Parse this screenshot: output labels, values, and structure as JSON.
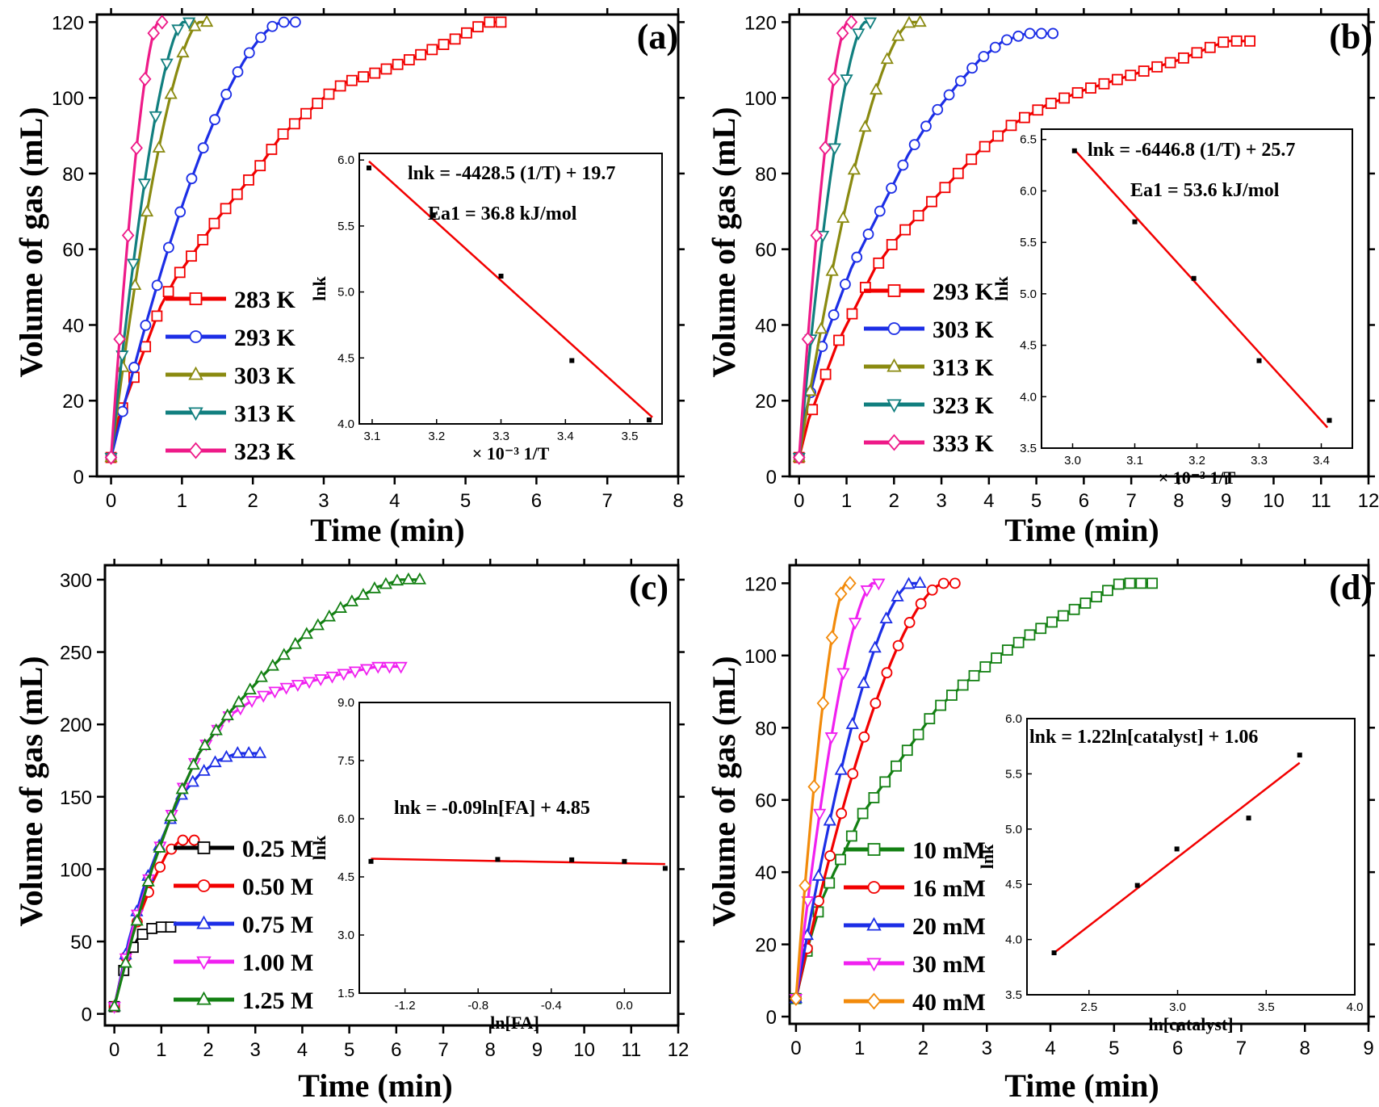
{
  "colors": {
    "red": "#f20000",
    "blue": "#1c2ee6",
    "olive": "#8a8a10",
    "teal": "#117f7f",
    "magenta": "#ee1a88",
    "black": "#000000",
    "green": "#138013",
    "pink": "#f020f0",
    "orange": "#f28a0a"
  },
  "chart_data": [
    {
      "panel_label": "(a)",
      "type": "line",
      "xlabel": "Time (min)",
      "ylabel": "Volume of gas (mL)",
      "xlim": [
        -0.2,
        8
      ],
      "ylim": [
        0,
        122
      ],
      "xticks": [
        "0",
        "1",
        "2",
        "3",
        "4",
        "5",
        "6",
        "7",
        "8"
      ],
      "yticks": [
        "0",
        "20",
        "40",
        "60",
        "80",
        "100",
        "120"
      ],
      "series": [
        {
          "name": "283 K",
          "color": "red",
          "marker": "square",
          "end_x": 5.5,
          "end_y": 120,
          "shape": [
            [
              0,
              5
            ],
            [
              0.1,
              15
            ],
            [
              0.3,
              25
            ],
            [
              0.5,
              35
            ],
            [
              0.7,
              45
            ],
            [
              0.9,
              52
            ],
            [
              1.2,
              60
            ],
            [
              1.5,
              68
            ],
            [
              1.8,
              75
            ],
            [
              2.1,
              82
            ],
            [
              2.4,
              90
            ],
            [
              2.7,
              95
            ],
            [
              3,
              100
            ],
            [
              3.3,
              104
            ],
            [
              3.8,
              107
            ],
            [
              4.2,
              110
            ],
            [
              4.8,
              115
            ],
            [
              5.3,
              120
            ],
            [
              5.5,
              120
            ]
          ]
        },
        {
          "name": "293 K",
          "color": "blue",
          "marker": "circle",
          "end_x": 2.6,
          "end_y": 120
        },
        {
          "name": "303 K",
          "color": "olive",
          "marker": "triangle-up",
          "end_x": 1.35,
          "end_y": 120
        },
        {
          "name": "313 K",
          "color": "teal",
          "marker": "triangle-down",
          "end_x": 1.1,
          "end_y": 120
        },
        {
          "name": "323 K",
          "color": "magenta",
          "marker": "diamond",
          "end_x": 0.72,
          "end_y": 120
        }
      ],
      "inset": {
        "xlabel": "× 10⁻³ 1/T",
        "ylabel": "lnk",
        "xlim": [
          3.08,
          3.55
        ],
        "ylim": [
          4.0,
          6.05
        ],
        "xticks": [
          "3.1",
          "3.2",
          "3.3",
          "3.4",
          "3.5"
        ],
        "yticks": [
          "4.0",
          "4.5",
          "5.0",
          "5.5",
          "6.0"
        ],
        "points": [
          [
            3.095,
            5.94
          ],
          [
            3.195,
            5.58
          ],
          [
            3.3,
            5.12
          ],
          [
            3.41,
            4.48
          ],
          [
            3.53,
            4.03
          ]
        ],
        "fit": [
          [
            3.095,
            5.99
          ],
          [
            3.535,
            4.05
          ]
        ],
        "equation": "lnk = -4428.5 (1/T) + 19.7",
        "energy": "Ea1 = 36.8 kJ/mol"
      }
    },
    {
      "panel_label": "(b)",
      "type": "line",
      "xlabel": "Time (min)",
      "ylabel": "Volume of gas (mL)",
      "xlim": [
        -0.2,
        12
      ],
      "ylim": [
        0,
        122
      ],
      "xticks": [
        "0",
        "1",
        "2",
        "3",
        "4",
        "5",
        "6",
        "7",
        "8",
        "9",
        "10",
        "11",
        "12"
      ],
      "yticks": [
        "0",
        "20",
        "40",
        "60",
        "80",
        "100",
        "120"
      ],
      "series": [
        {
          "name": "293 K",
          "color": "red",
          "marker": "square",
          "end_x": 9.5,
          "end_y": 115,
          "shape": [
            [
              0,
              5
            ],
            [
              0.2,
              15
            ],
            [
              0.5,
              25
            ],
            [
              0.8,
              35
            ],
            [
              1.2,
              45
            ],
            [
              1.6,
              55
            ],
            [
              2,
              62
            ],
            [
              2.6,
              70
            ],
            [
              3.2,
              78
            ],
            [
              3.8,
              86
            ],
            [
              4.5,
              93
            ],
            [
              5.2,
              98
            ],
            [
              6,
              102
            ],
            [
              7,
              106
            ],
            [
              8,
              110
            ],
            [
              9,
              115
            ],
            [
              9.5,
              115
            ]
          ]
        },
        {
          "name": "303 K",
          "color": "blue",
          "marker": "circle",
          "end_x": 5.35,
          "end_y": 117,
          "shape": [
            [
              0,
              5
            ],
            [
              0.1,
              15
            ],
            [
              0.3,
              25
            ],
            [
              0.5,
              35
            ],
            [
              0.8,
              45
            ],
            [
              1.1,
              55
            ],
            [
              1.5,
              65
            ],
            [
              1.9,
              75
            ],
            [
              2.3,
              85
            ],
            [
              2.8,
              95
            ],
            [
              3.3,
              103
            ],
            [
              3.8,
              110
            ],
            [
              4.3,
              115
            ],
            [
              4.8,
              117
            ],
            [
              5.35,
              117
            ]
          ]
        },
        {
          "name": "313 K",
          "color": "olive",
          "marker": "triangle-up",
          "end_x": 2.55,
          "end_y": 120
        },
        {
          "name": "323 K",
          "color": "teal",
          "marker": "triangle-down",
          "end_x": 1.5,
          "end_y": 120
        },
        {
          "name": "333 K",
          "color": "magenta",
          "marker": "diamond",
          "end_x": 1.1,
          "end_y": 120
        }
      ],
      "inset": {
        "xlabel": "× 10⁻³ 1/T",
        "ylabel": "lnk",
        "xlim": [
          2.95,
          3.45
        ],
        "ylim": [
          3.5,
          6.6
        ],
        "xticks": [
          "3.0",
          "3.1",
          "3.2",
          "3.3",
          "3.4"
        ],
        "yticks": [
          "3.5",
          "4.0",
          "4.5",
          "5.0",
          "5.5",
          "6.0",
          "6.5"
        ],
        "points": [
          [
            3.003,
            6.39
          ],
          [
            3.1,
            5.7
          ],
          [
            3.195,
            5.15
          ],
          [
            3.3,
            4.35
          ],
          [
            3.413,
            3.77
          ]
        ],
        "fit": [
          [
            3.003,
            6.4
          ],
          [
            3.41,
            3.7
          ]
        ],
        "equation": "lnk = -6446.8 (1/T) + 25.7",
        "energy": "Ea1 = 53.6 kJ/mol"
      }
    },
    {
      "panel_label": "(c)",
      "type": "line",
      "xlabel": "Time (min)",
      "ylabel": "Volume of gas (mL)",
      "xlim": [
        -0.2,
        12
      ],
      "ylim": [
        -8,
        310
      ],
      "xticks": [
        "0",
        "1",
        "2",
        "3",
        "4",
        "5",
        "6",
        "7",
        "8",
        "9",
        "10",
        "11",
        "12"
      ],
      "yticks": [
        "0",
        "50",
        "100",
        "150",
        "200",
        "250",
        "300"
      ],
      "series": [
        {
          "name": "0.25 M",
          "color": "black",
          "marker": "square",
          "end_x": 1.2,
          "end_y": 60,
          "shape": [
            [
              0,
              5
            ],
            [
              0.15,
              25
            ],
            [
              0.3,
              40
            ],
            [
              0.5,
              52
            ],
            [
              0.7,
              58
            ],
            [
              0.9,
              60
            ],
            [
              1.2,
              60
            ]
          ]
        },
        {
          "name": "0.50 M",
          "color": "red",
          "marker": "circle",
          "end_x": 1.7,
          "end_y": 120,
          "shape": [
            [
              0,
              5
            ],
            [
              0.2,
              35
            ],
            [
              0.5,
              65
            ],
            [
              0.8,
              90
            ],
            [
              1.1,
              110
            ],
            [
              1.4,
              120
            ],
            [
              1.7,
              120
            ]
          ]
        },
        {
          "name": "0.75 M",
          "color": "blue",
          "marker": "triangle-up",
          "end_x": 3.1,
          "end_y": 180,
          "shape": [
            [
              0,
              5
            ],
            [
              0.3,
              50
            ],
            [
              0.6,
              85
            ],
            [
              1,
              120
            ],
            [
              1.4,
              150
            ],
            [
              1.8,
              165
            ],
            [
              2.2,
              175
            ],
            [
              2.6,
              180
            ],
            [
              3.1,
              180
            ]
          ]
        },
        {
          "name": "1.00 M",
          "color": "pink",
          "marker": "triangle-down",
          "end_x": 6.1,
          "end_y": 240,
          "shape": [
            [
              0,
              5
            ],
            [
              0.4,
              60
            ],
            [
              0.8,
              100
            ],
            [
              1.3,
              145
            ],
            [
              1.8,
              180
            ],
            [
              2.4,
              205
            ],
            [
              3,
              218
            ],
            [
              3.6,
              225
            ],
            [
              4.2,
              230
            ],
            [
              5,
              236
            ],
            [
              5.6,
              240
            ],
            [
              6.1,
              240
            ]
          ]
        },
        {
          "name": "1.25 M",
          "color": "green",
          "marker": "triangle-up",
          "end_x": 6.5,
          "end_y": 300,
          "shape": [
            [
              0,
              5
            ],
            [
              0.4,
              55
            ],
            [
              0.8,
              100
            ],
            [
              1.3,
              145
            ],
            [
              1.8,
              180
            ],
            [
              2.5,
              210
            ],
            [
              3.2,
              235
            ],
            [
              4,
              260
            ],
            [
              4.8,
              280
            ],
            [
              5.6,
              295
            ],
            [
              6.1,
              300
            ],
            [
              6.5,
              300
            ]
          ]
        }
      ],
      "inset": {
        "xlabel": "ln[FA]",
        "ylabel": "lnk",
        "xlim": [
          -1.45,
          0.25
        ],
        "ylim": [
          1.5,
          9.0
        ],
        "xticks": [
          "-1.2",
          "-0.8",
          "-0.4",
          "0.0"
        ],
        "yticks": [
          "1.5",
          "3.0",
          "4.5",
          "6.0",
          "7.5",
          "9.0"
        ],
        "points": [
          [
            -1.386,
            4.9
          ],
          [
            -0.693,
            4.95
          ],
          [
            -0.288,
            4.94
          ],
          [
            0,
            4.9
          ],
          [
            0.223,
            4.72
          ]
        ],
        "fit": [
          [
            -1.386,
            4.97
          ],
          [
            0.223,
            4.83
          ]
        ],
        "equation": "lnk = -0.09ln[FA] + 4.85"
      }
    },
    {
      "panel_label": "(d)",
      "type": "line",
      "xlabel": "Time (min)",
      "ylabel": "Volume of gas (mL)",
      "xlim": [
        -0.1,
        9
      ],
      "ylim": [
        -2,
        125
      ],
      "xticks": [
        "0",
        "1",
        "2",
        "3",
        "4",
        "5",
        "6",
        "7",
        "8",
        "9"
      ],
      "yticks": [
        "0",
        "20",
        "40",
        "60",
        "80",
        "100",
        "120"
      ],
      "series": [
        {
          "name": "10 mM",
          "color": "green",
          "marker": "square",
          "end_x": 5.6,
          "end_y": 120,
          "shape": [
            [
              0,
              5
            ],
            [
              0.2,
              20
            ],
            [
              0.4,
              32
            ],
            [
              0.6,
              40
            ],
            [
              0.8,
              47
            ],
            [
              1,
              55
            ],
            [
              1.4,
              65
            ],
            [
              1.8,
              75
            ],
            [
              2.2,
              85
            ],
            [
              2.7,
              93
            ],
            [
              3.2,
              100
            ],
            [
              3.7,
              106
            ],
            [
              4.2,
              111
            ],
            [
              4.7,
              116
            ],
            [
              5.1,
              120
            ],
            [
              5.6,
              120
            ]
          ]
        },
        {
          "name": "16 mM",
          "color": "red",
          "marker": "circle",
          "end_x": 2.5,
          "end_y": 120
        },
        {
          "name": "20 mM",
          "color": "blue",
          "marker": "triangle-up",
          "end_x": 1.95,
          "end_y": 120
        },
        {
          "name": "30 mM",
          "color": "pink",
          "marker": "triangle-down",
          "end_x": 1.3,
          "end_y": 120
        },
        {
          "name": "40 mM",
          "color": "orange",
          "marker": "diamond",
          "end_x": 0.85,
          "end_y": 120
        }
      ],
      "inset": {
        "xlabel": "ln[catalyst]",
        "ylabel": "lnk",
        "xlim": [
          2.15,
          4.0
        ],
        "ylim": [
          3.5,
          6.0
        ],
        "xticks": [
          "2.5",
          "3.0",
          "3.5",
          "4.0"
        ],
        "yticks": [
          "3.5",
          "4.0",
          "4.5",
          "5.0",
          "5.5",
          "6.0"
        ],
        "points": [
          [
            2.303,
            3.88
          ],
          [
            2.773,
            4.49
          ],
          [
            2.996,
            4.82
          ],
          [
            3.401,
            5.1
          ],
          [
            3.689,
            5.67
          ]
        ],
        "fit": [
          [
            2.303,
            3.88
          ],
          [
            3.689,
            5.6
          ]
        ],
        "equation": "lnk = 1.22ln[catalyst] + 1.06"
      }
    }
  ]
}
